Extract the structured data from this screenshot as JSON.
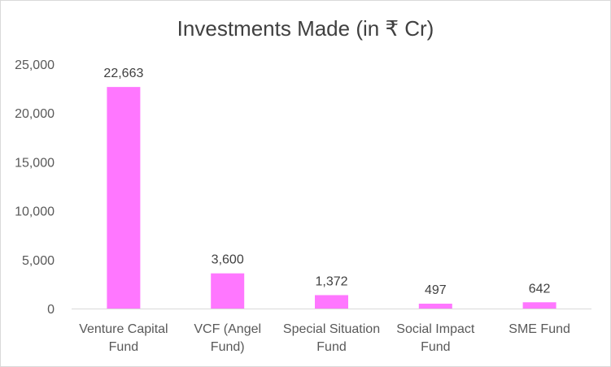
{
  "chart_data": {
    "type": "bar",
    "title": "Investments Made (in ₹ Cr)",
    "xlabel": "",
    "ylabel": "",
    "categories": [
      [
        "Venture Capital",
        "Fund"
      ],
      [
        "VCF (Angel",
        "Fund)"
      ],
      [
        "Special Situation",
        "Fund"
      ],
      [
        "Social Impact",
        "Fund"
      ],
      [
        "SME Fund"
      ]
    ],
    "values": [
      22663,
      3600,
      1372,
      497,
      642
    ],
    "data_labels": [
      "22,663",
      "3,600",
      "1,372",
      "497",
      "642"
    ],
    "ylim": [
      0,
      25000
    ],
    "yticks": [
      0,
      5000,
      10000,
      15000,
      20000,
      25000
    ],
    "ytick_labels": [
      "0",
      "5,000",
      "10,000",
      "15,000",
      "20,000",
      "25,000"
    ],
    "grid": false,
    "legend": "none",
    "colors": {
      "bar": "#ff77ff",
      "axis": "#d9d9d9"
    }
  }
}
